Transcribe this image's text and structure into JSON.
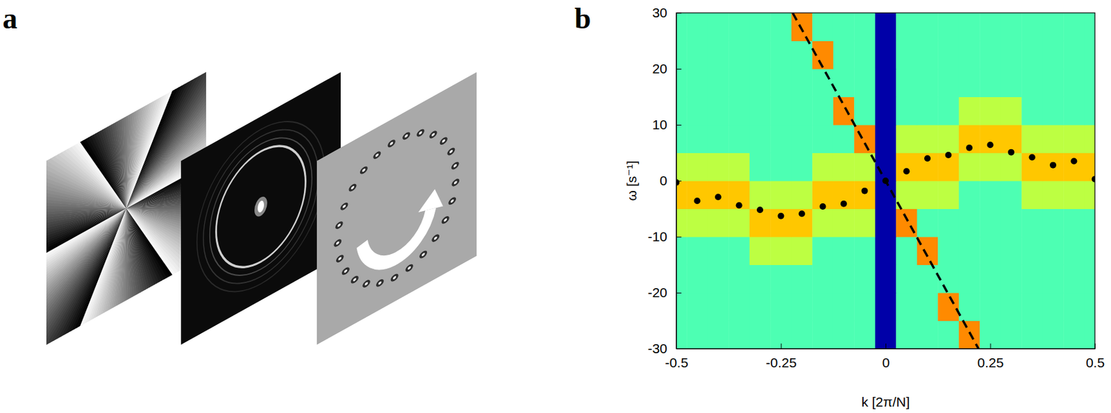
{
  "figure_labels": [
    "a",
    "b"
  ],
  "chart_data": {
    "type": "heatmap",
    "x_label": "k [2π/N]",
    "y_label": "ω [s⁻¹]",
    "xlim": [
      -0.5,
      0.5
    ],
    "xticks": [
      -0.5,
      -0.25,
      0,
      0.25,
      0.5
    ],
    "ylim": [
      -30,
      30
    ],
    "yticks": [
      -30,
      -20,
      -10,
      0,
      10,
      20,
      30
    ],
    "heatmap": {
      "x": [
        -0.5,
        -0.45,
        -0.4,
        -0.35,
        -0.3,
        -0.25,
        -0.2,
        -0.15,
        -0.1,
        -0.05,
        0,
        0.05,
        0.1,
        0.15,
        0.2,
        0.25,
        0.3,
        0.35,
        0.4,
        0.45,
        0.5
      ],
      "y": [
        -27.5,
        -22.5,
        -17.5,
        -12.5,
        -7.5,
        -2.5,
        2.5,
        7.5,
        12.5,
        17.5,
        22.5,
        27.5
      ],
      "zlim": [
        0,
        1
      ],
      "z": [
        [
          0.45,
          0.45,
          0.45,
          0.45,
          0.45,
          0.45,
          0.45,
          0.45,
          0.45,
          0.45,
          0.04,
          0.45,
          0.45,
          0.45,
          0.74,
          0.45,
          0.45,
          0.45,
          0.45,
          0.45,
          0.45
        ],
        [
          0.45,
          0.45,
          0.45,
          0.45,
          0.45,
          0.45,
          0.45,
          0.45,
          0.45,
          0.45,
          0.04,
          0.45,
          0.45,
          0.74,
          0.45,
          0.45,
          0.45,
          0.45,
          0.45,
          0.45,
          0.45
        ],
        [
          0.45,
          0.45,
          0.45,
          0.45,
          0.45,
          0.45,
          0.45,
          0.45,
          0.45,
          0.45,
          0.04,
          0.45,
          0.45,
          0.45,
          0.45,
          0.45,
          0.45,
          0.45,
          0.45,
          0.45,
          0.45
        ],
        [
          0.45,
          0.45,
          0.45,
          0.45,
          0.56,
          0.56,
          0.56,
          0.45,
          0.45,
          0.45,
          0.04,
          0.45,
          0.74,
          0.45,
          0.45,
          0.45,
          0.45,
          0.45,
          0.45,
          0.45,
          0.45
        ],
        [
          0.56,
          0.56,
          0.56,
          0.56,
          0.68,
          0.68,
          0.68,
          0.56,
          0.56,
          0.56,
          0.04,
          0.74,
          0.45,
          0.45,
          0.45,
          0.45,
          0.45,
          0.45,
          0.45,
          0.45,
          0.45
        ],
        [
          0.68,
          0.68,
          0.68,
          0.68,
          0.56,
          0.56,
          0.56,
          0.68,
          0.68,
          0.68,
          0.04,
          0.56,
          0.56,
          0.56,
          0.45,
          0.45,
          0.45,
          0.56,
          0.56,
          0.56,
          0.56
        ],
        [
          0.56,
          0.56,
          0.56,
          0.56,
          0.45,
          0.45,
          0.45,
          0.56,
          0.56,
          0.56,
          0.04,
          0.68,
          0.68,
          0.68,
          0.56,
          0.56,
          0.56,
          0.68,
          0.68,
          0.68,
          0.68
        ],
        [
          0.45,
          0.45,
          0.45,
          0.45,
          0.45,
          0.45,
          0.45,
          0.45,
          0.45,
          0.74,
          0.04,
          0.56,
          0.56,
          0.56,
          0.68,
          0.68,
          0.68,
          0.56,
          0.56,
          0.56,
          0.56
        ],
        [
          0.45,
          0.45,
          0.45,
          0.45,
          0.45,
          0.45,
          0.45,
          0.45,
          0.74,
          0.45,
          0.04,
          0.45,
          0.45,
          0.45,
          0.56,
          0.56,
          0.56,
          0.45,
          0.45,
          0.45,
          0.45
        ],
        [
          0.45,
          0.45,
          0.45,
          0.45,
          0.45,
          0.45,
          0.45,
          0.45,
          0.45,
          0.45,
          0.04,
          0.45,
          0.45,
          0.45,
          0.45,
          0.45,
          0.45,
          0.45,
          0.45,
          0.45,
          0.45
        ],
        [
          0.45,
          0.45,
          0.45,
          0.45,
          0.45,
          0.45,
          0.45,
          0.74,
          0.45,
          0.45,
          0.04,
          0.45,
          0.45,
          0.45,
          0.45,
          0.45,
          0.45,
          0.45,
          0.45,
          0.45,
          0.45
        ],
        [
          0.45,
          0.45,
          0.45,
          0.45,
          0.45,
          0.45,
          0.74,
          0.45,
          0.45,
          0.45,
          0.04,
          0.45,
          0.45,
          0.45,
          0.45,
          0.45,
          0.45,
          0.45,
          0.45,
          0.45,
          0.45
        ]
      ]
    },
    "series": [
      {
        "type": "scatter",
        "marker": "circle",
        "color": "#000000",
        "x": [
          -0.5,
          -0.45,
          -0.4,
          -0.35,
          -0.3,
          -0.25,
          -0.2,
          -0.15,
          -0.1,
          -0.05,
          0,
          0.05,
          0.1,
          0.15,
          0.2,
          0.25,
          0.3,
          0.35,
          0.4,
          0.45,
          0.5
        ],
        "values": [
          -0.3,
          -3.6,
          -2.9,
          -4.4,
          -5.2,
          -6.3,
          -5.9,
          -4.6,
          -4.1,
          -1.8,
          0,
          1.7,
          4.0,
          4.6,
          5.9,
          6.4,
          5.1,
          4.2,
          2.8,
          3.5,
          0.3
        ]
      },
      {
        "type": "line",
        "line_style": "dashed",
        "color": "#000000",
        "x": [
          -0.222,
          0.222
        ],
        "values": [
          30,
          -30
        ]
      }
    ]
  }
}
